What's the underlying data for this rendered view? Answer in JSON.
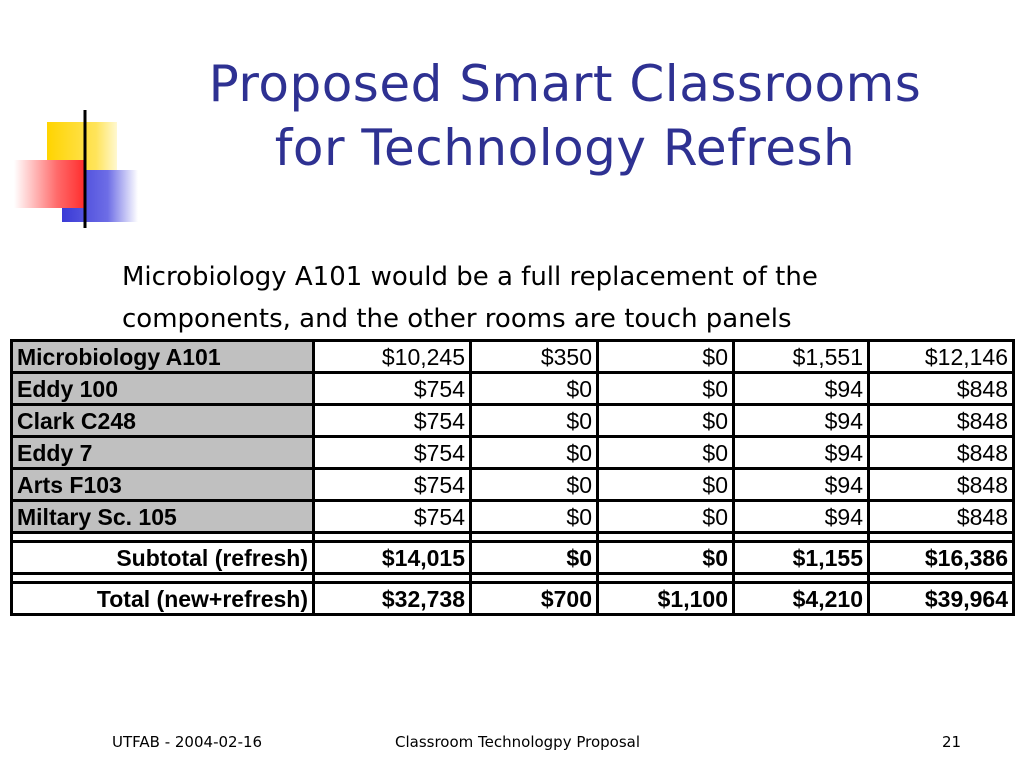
{
  "slide": {
    "title_line1": "Proposed Smart Classrooms",
    "title_line2": "for Technology Refresh",
    "intro_line1": "Microbiology A101 would be a full replacement of the",
    "intro_line2": "components, and the other rooms are touch panels"
  },
  "colors": {
    "title": "#2e3192",
    "yellow_square": "#ffd700",
    "red_square": "#ff5a5a",
    "blue_square": "#3a3ad6",
    "header_cell": "#c0c0c0"
  },
  "table": {
    "rows": [
      {
        "name": "Microbiology A101",
        "c1": "$10,245",
        "c2": "$350",
        "c3": "$0",
        "c4": "$1,551",
        "c5": "$12,146"
      },
      {
        "name": "Eddy 100",
        "c1": "$754",
        "c2": "$0",
        "c3": "$0",
        "c4": "$94",
        "c5": "$848"
      },
      {
        "name": "Clark C248",
        "c1": "$754",
        "c2": "$0",
        "c3": "$0",
        "c4": "$94",
        "c5": "$848"
      },
      {
        "name": "Eddy 7",
        "c1": "$754",
        "c2": "$0",
        "c3": "$0",
        "c4": "$94",
        "c5": "$848"
      },
      {
        "name": "Arts F103",
        "c1": "$754",
        "c2": "$0",
        "c3": "$0",
        "c4": "$94",
        "c5": "$848"
      },
      {
        "name": "Miltary Sc. 105",
        "c1": "$754",
        "c2": "$0",
        "c3": "$0",
        "c4": "$94",
        "c5": "$848"
      }
    ],
    "subtotal": {
      "name": "Subtotal (refresh)",
      "c1": "$14,015",
      "c2": "$0",
      "c3": "$0",
      "c4": "$1,155",
      "c5": "$16,386"
    },
    "total": {
      "name": "Total (new+refresh)",
      "c1": "$32,738",
      "c2": "$700",
      "c3": "$1,100",
      "c4": "$4,210",
      "c5": "$39,964"
    }
  },
  "footer": {
    "left": "UTFAB - 2004-02-16",
    "center": "Classroom Technologpy Proposal",
    "page": "21"
  }
}
